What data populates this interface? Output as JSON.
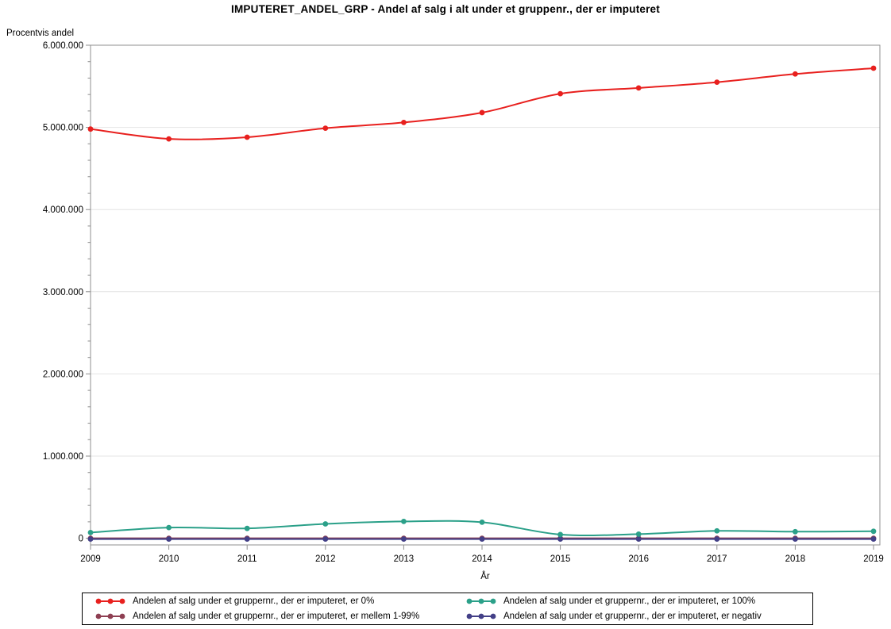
{
  "chart_data": {
    "type": "line",
    "title": "IMPUTERET_ANDEL_GRP - Andel af salg i alt under et gruppenr., der er imputeret",
    "ylabel": "Procentvis andel",
    "xlabel": "År",
    "x": [
      "2009",
      "2010",
      "2011",
      "2012",
      "2013",
      "2014",
      "2015",
      "2016",
      "2017",
      "2018",
      "2019"
    ],
    "y_tick_labels": [
      "6.000.000",
      "5.000.000",
      "4.000.000",
      "3.000.000",
      "2.000.000",
      "1.000.000",
      "0"
    ],
    "ylim": [
      0,
      6000000
    ],
    "minor_tick_step": 200000,
    "grid": true,
    "legend_position": "bottom",
    "colors": {
      "grid": "#e4e4e4",
      "frame": "#8f8f8f",
      "text": "#000000"
    },
    "draw_order": [
      1,
      3,
      2,
      0
    ],
    "series": [
      {
        "name": "Andelen af salg under et gruppernr., der er imputeret, er 0%",
        "color": "#e8201e",
        "values": [
          4980000,
          4860000,
          4880000,
          4990000,
          5060000,
          5180000,
          5410000,
          5480000,
          5550000,
          5650000,
          5720000
        ]
      },
      {
        "name": "Andelen af salg under et gruppernr., der er imputeret, er mellem 1-99%",
        "color": "#8e3f52",
        "values": [
          0,
          0,
          0,
          0,
          0,
          0,
          0,
          0,
          0,
          0,
          0
        ]
      },
      {
        "name": "Andelen af salg under et gruppernr., der er imputeret, er 100%",
        "color": "#2ba089",
        "values": [
          70000,
          130000,
          120000,
          175000,
          205000,
          195000,
          45000,
          50000,
          90000,
          80000,
          85000
        ]
      },
      {
        "name": "Andelen af salg under et gruppernr., der er imputeret, er negativ",
        "color": "#434087",
        "values": [
          -10000,
          -10000,
          -10000,
          -10000,
          -10000,
          -10000,
          -10000,
          -10000,
          -10000,
          -10000,
          -10000
        ]
      }
    ]
  }
}
